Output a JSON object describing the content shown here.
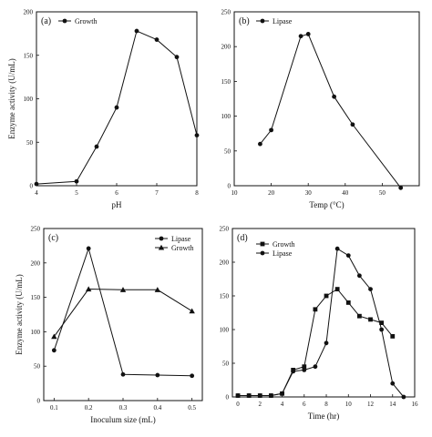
{
  "chart_data": [
    {
      "panel_label": "(a)",
      "type": "line",
      "xlabel": "pH",
      "ylabel": "Enzyme activity (U/mL)",
      "xlim": [
        4,
        8
      ],
      "ylim": [
        0,
        200
      ],
      "x_ticks": [
        "4",
        "5",
        "6",
        "7",
        "8"
      ],
      "y_ticks": [
        "0",
        "50",
        "100",
        "150",
        "200"
      ],
      "legend_position": "top-left",
      "series": [
        {
          "name": "Growth",
          "marker": "circle",
          "x": [
            4,
            5,
            5.5,
            6,
            6.5,
            7,
            7.5,
            8
          ],
          "y": [
            2,
            5,
            45,
            90,
            178,
            168,
            148,
            58
          ]
        }
      ]
    },
    {
      "panel_label": "(b)",
      "type": "line",
      "xlabel": "Temp (°C)",
      "ylabel": "",
      "xlim": [
        10,
        60
      ],
      "ylim": [
        0,
        250
      ],
      "x_ticks": [
        "10",
        "20",
        "30",
        "40",
        "50"
      ],
      "y_ticks": [
        "0",
        "50",
        "100",
        "150",
        "200",
        "250"
      ],
      "legend_position": "top-left",
      "series": [
        {
          "name": "Lipase",
          "marker": "circle",
          "x": [
            17,
            20,
            28,
            30,
            37,
            42,
            55
          ],
          "y": [
            60,
            80,
            215,
            218,
            128,
            88,
            -3
          ]
        }
      ]
    },
    {
      "panel_label": "(c)",
      "type": "line",
      "xlabel": "Inoculum size (mL)",
      "ylabel": "Enzyme activity (U/mL)",
      "xlim": [
        0.07,
        0.53
      ],
      "ylim": [
        0,
        250
      ],
      "x_ticks": [
        "0.1",
        "0.2",
        "0.3",
        "0.4",
        "0.5"
      ],
      "y_ticks": [
        "0",
        "50",
        "100",
        "150",
        "200",
        "250"
      ],
      "legend_position": "top-right",
      "series": [
        {
          "name": "Lipase",
          "marker": "circle",
          "x": [
            0.1,
            0.2,
            0.3,
            0.4,
            0.5
          ],
          "y": [
            73,
            221,
            38,
            37,
            36
          ]
        },
        {
          "name": "Growth",
          "marker": "triangle",
          "x": [
            0.1,
            0.2,
            0.3,
            0.4,
            0.5
          ],
          "y": [
            93,
            162,
            161,
            161,
            130
          ]
        }
      ]
    },
    {
      "panel_label": "(d)",
      "type": "line",
      "xlabel": "Time (hr)",
      "ylabel": "",
      "xlim": [
        -0.5,
        16
      ],
      "ylim": [
        0,
        250
      ],
      "x_ticks": [
        "0",
        "2",
        "4",
        "6",
        "8",
        "10",
        "12",
        "14",
        "16"
      ],
      "y_ticks": [
        "0",
        "50",
        "100",
        "150",
        "200",
        "250"
      ],
      "legend_position": "top-left",
      "series": [
        {
          "name": "Growth",
          "marker": "square",
          "x": [
            0,
            1,
            2,
            3,
            4,
            5,
            6,
            7,
            8,
            9,
            10,
            11,
            12,
            13,
            14
          ],
          "y": [
            2,
            2,
            2,
            2,
            5,
            40,
            45,
            130,
            150,
            160,
            140,
            120,
            115,
            110,
            90
          ]
        },
        {
          "name": "Lipase",
          "marker": "circle",
          "x": [
            0,
            1,
            2,
            3,
            4,
            5,
            6,
            7,
            8,
            9,
            10,
            11,
            12,
            13,
            14,
            15
          ],
          "y": [
            2,
            2,
            2,
            2,
            5,
            38,
            40,
            45,
            80,
            220,
            210,
            180,
            160,
            100,
            20,
            0
          ]
        }
      ]
    }
  ]
}
